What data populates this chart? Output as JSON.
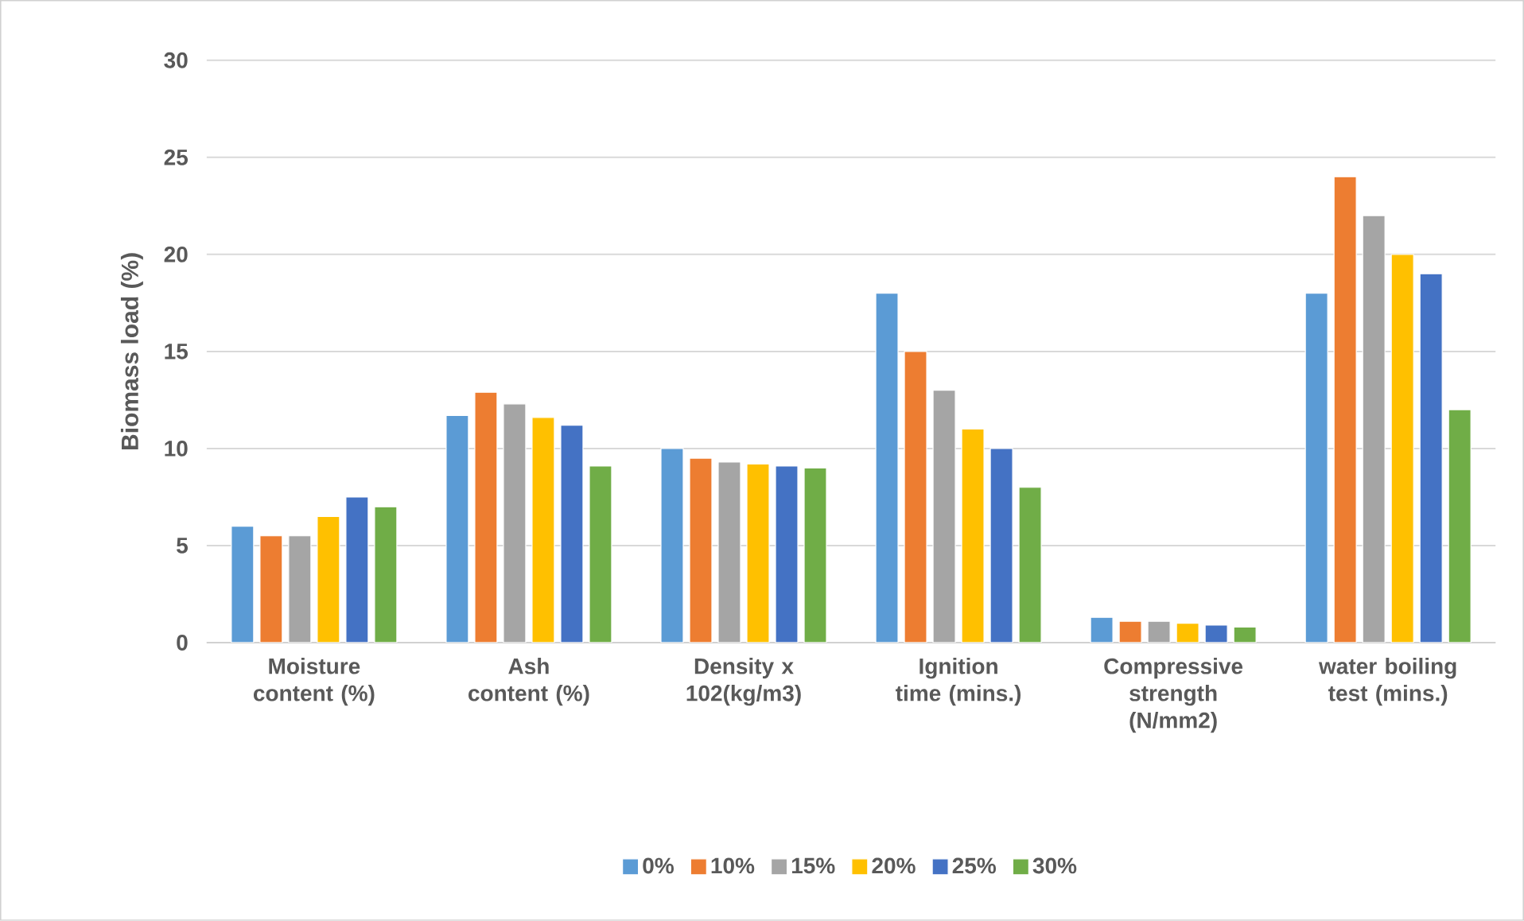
{
  "chart_data": {
    "type": "bar",
    "ylabel": "Biomass load (%)",
    "categories": [
      "Moisture content (%)",
      "Ash content (%)",
      "Density x 102(kg/m3)",
      "Ignition time (mins.)",
      "Compressive strength (N/mm2)",
      "water boiling test (mins.)"
    ],
    "series": [
      {
        "name": "0%",
        "color": "#5b9bd5",
        "values": [
          6.0,
          11.7,
          10.0,
          18.0,
          1.3,
          18.0
        ]
      },
      {
        "name": "10%",
        "color": "#ed7d31",
        "values": [
          5.5,
          12.9,
          9.5,
          15.0,
          1.1,
          24.0
        ]
      },
      {
        "name": "15%",
        "color": "#a5a5a5",
        "values": [
          5.5,
          12.3,
          9.3,
          13.0,
          1.1,
          22.0
        ]
      },
      {
        "name": "20%",
        "color": "#ffc000",
        "values": [
          6.5,
          11.6,
          9.2,
          11.0,
          1.0,
          20.0
        ]
      },
      {
        "name": "25%",
        "color": "#4472c4",
        "values": [
          7.5,
          11.2,
          9.1,
          10.0,
          0.9,
          19.0
        ]
      },
      {
        "name": "30%",
        "color": "#70ad47",
        "values": [
          7.0,
          9.1,
          9.0,
          8.0,
          0.8,
          12.0
        ]
      }
    ],
    "ylim": [
      0,
      30
    ],
    "yticks": [
      0,
      5,
      10,
      15,
      20,
      25,
      30
    ],
    "grid": "y",
    "legend": "bottom"
  }
}
